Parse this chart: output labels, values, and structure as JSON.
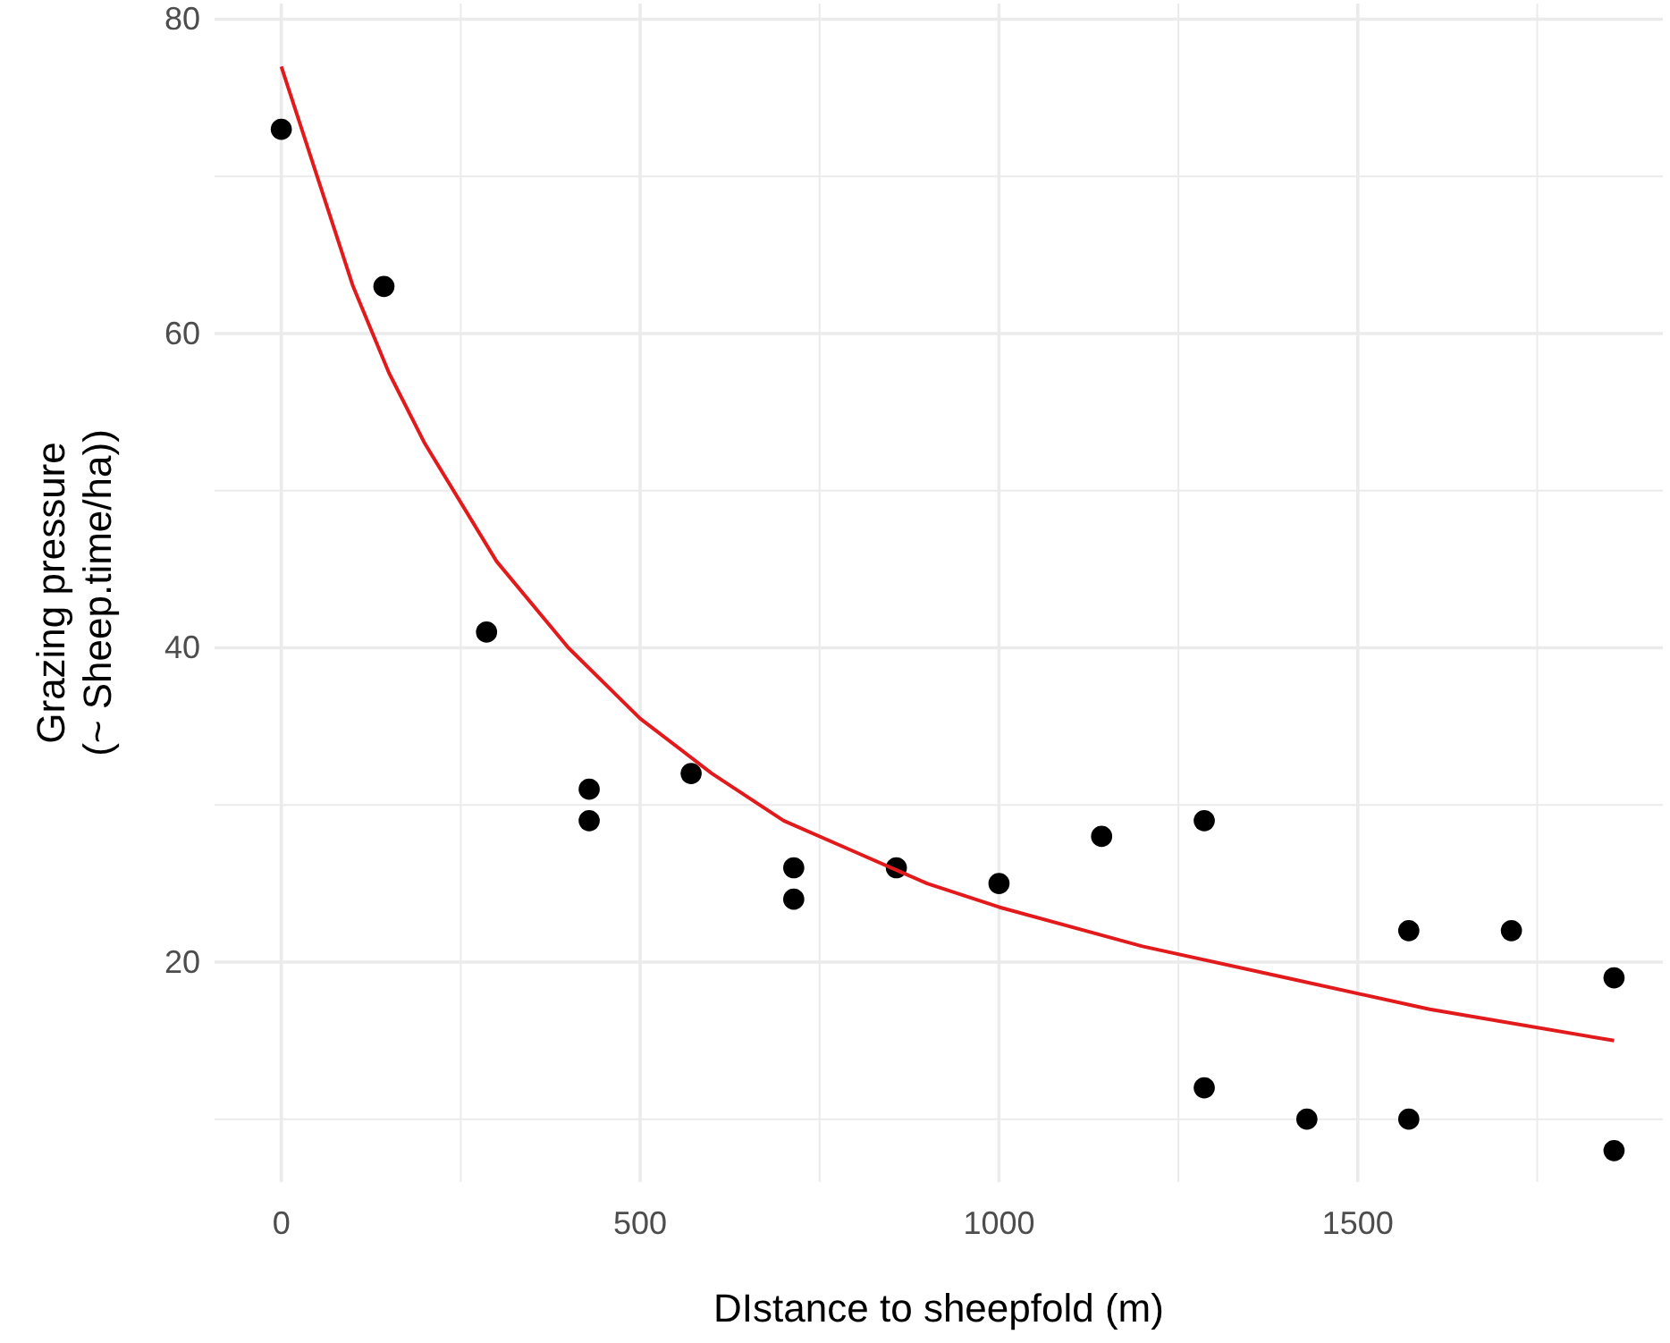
{
  "chart_data": {
    "type": "scatter",
    "xlabel": "DIstance to sheepfold (m)",
    "ylabel": "Grazing pressure\n(~ Sheep.time/ha))",
    "xlim": [
      -93,
      1925
    ],
    "ylim": [
      6,
      81
    ],
    "xticks": [
      0,
      {
        "value": 250,
        "label": null
      },
      500,
      {
        "value": 750,
        "label": null
      },
      1000,
      {
        "value": 1250,
        "label": null
      },
      1500,
      {
        "value": 1750,
        "label": null
      }
    ],
    "yticks": [
      {
        "value": 10,
        "label": null
      },
      20,
      {
        "value": 30,
        "label": null
      },
      40,
      {
        "value": 50,
        "label": null
      },
      60,
      {
        "value": 70,
        "label": null
      },
      80
    ],
    "grid": true,
    "series": [
      {
        "marker": "circle",
        "color": "#000000",
        "x": [
          0,
          143,
          286,
          429,
          429,
          571,
          714,
          714,
          857,
          1000,
          1143,
          1286,
          1286,
          1429,
          1571,
          1571,
          1714,
          1857,
          1857
        ],
        "values": [
          73,
          63,
          41,
          31,
          29,
          32,
          26,
          24,
          26,
          25,
          28,
          29,
          12,
          10,
          22,
          10,
          22,
          19,
          8
        ]
      },
      {
        "type": "line",
        "color": "#e31a1c",
        "x": [
          0,
          50,
          100,
          150,
          200,
          300,
          400,
          500,
          600,
          700,
          800,
          900,
          1000,
          1200,
          1400,
          1600,
          1857
        ],
        "values": [
          77,
          70,
          63,
          57.5,
          53,
          45.5,
          40,
          35.5,
          32,
          29,
          27,
          25,
          23.5,
          21,
          19,
          17,
          15
        ]
      }
    ]
  }
}
